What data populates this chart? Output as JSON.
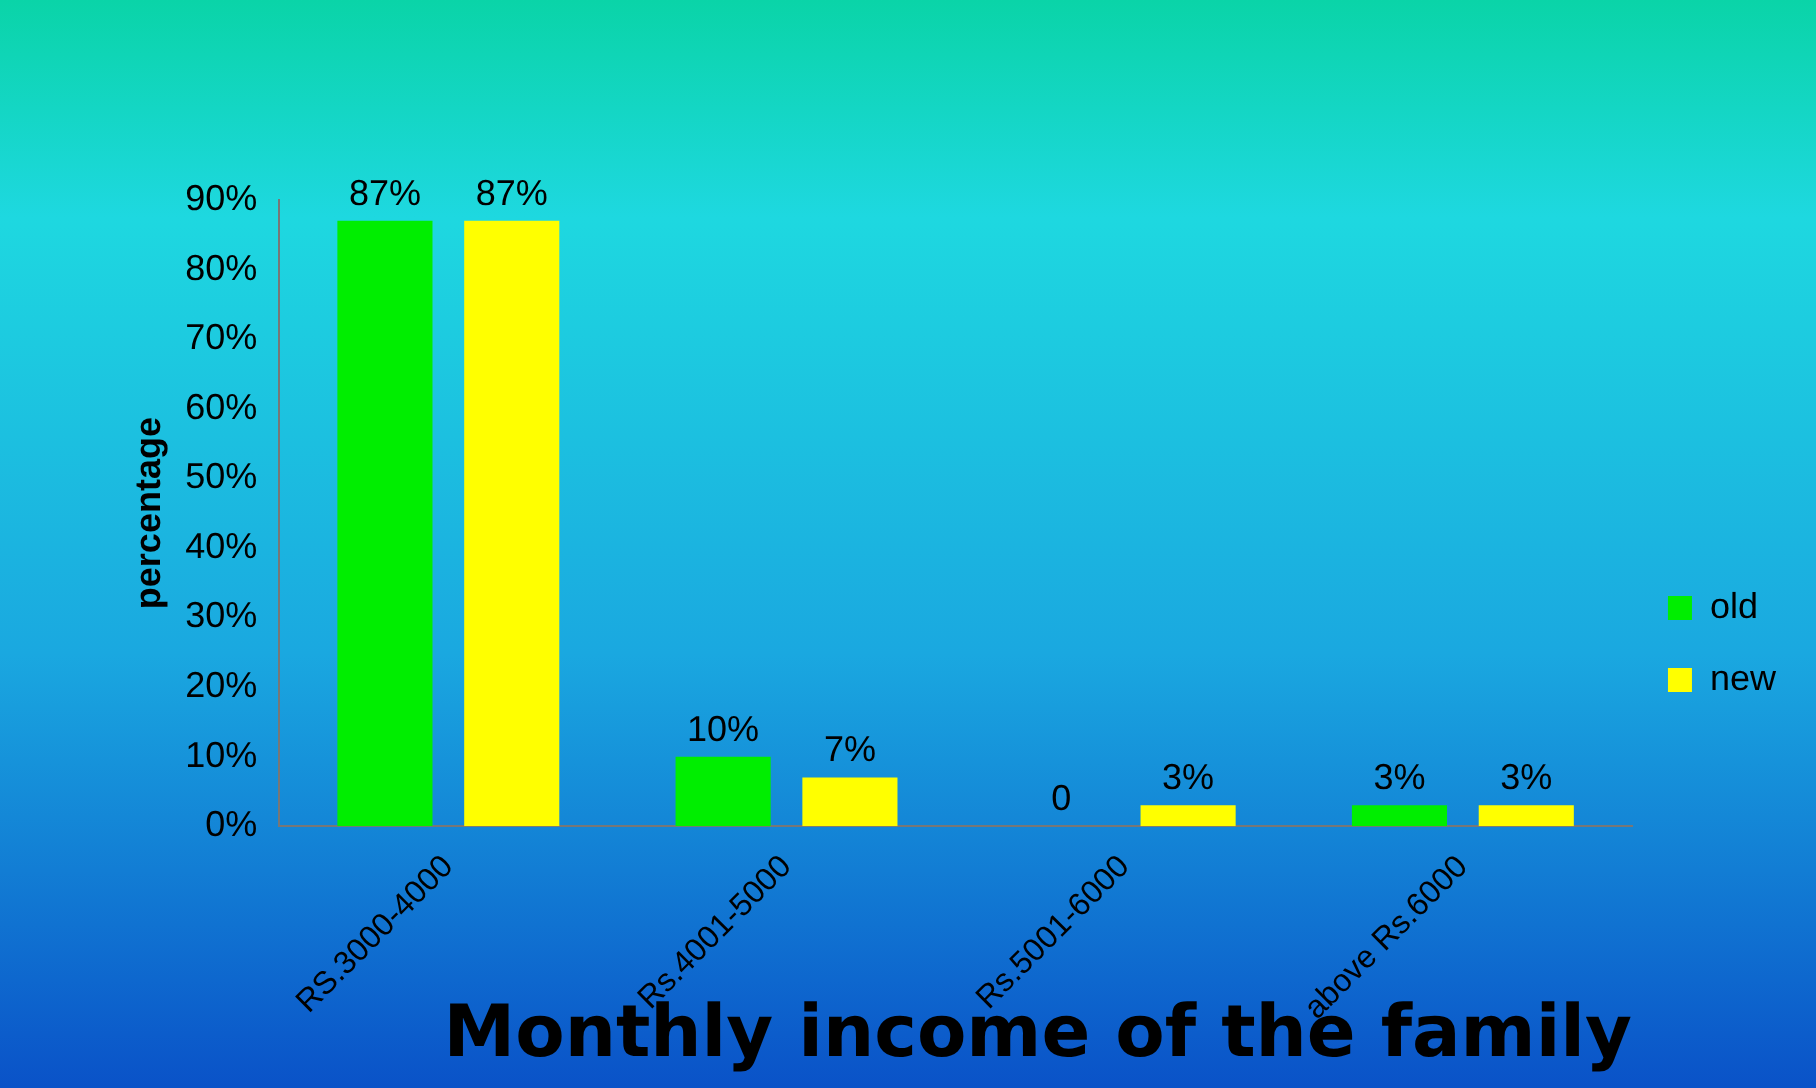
{
  "chart_data": {
    "type": "bar",
    "xlabel": "Monthly income of the family",
    "ylabel": "percentage",
    "categories": [
      "RS.3000-4000",
      "Rs.4001-5000",
      "Rs.5001-6000",
      "above Rs.6000"
    ],
    "series": [
      {
        "name": "old",
        "color": "#00ee00",
        "values": [
          87,
          10,
          0,
          3
        ],
        "value_labels": [
          "87%",
          "10%",
          "0",
          "3%"
        ]
      },
      {
        "name": "new",
        "color": "#ffff00",
        "values": [
          87,
          7,
          3,
          3
        ],
        "value_labels": [
          "87%",
          "7%",
          "3%",
          "3%"
        ]
      }
    ],
    "ylim": [
      0,
      90
    ],
    "yticks": [
      {
        "value": 0,
        "label": "0%"
      },
      {
        "value": 10,
        "label": "10%"
      },
      {
        "value": 20,
        "label": "20%"
      },
      {
        "value": 30,
        "label": "30%"
      },
      {
        "value": 40,
        "label": "40%"
      },
      {
        "value": 50,
        "label": "50%"
      },
      {
        "value": 60,
        "label": "60%"
      },
      {
        "value": 70,
        "label": "70%"
      },
      {
        "value": 80,
        "label": "80%"
      },
      {
        "value": 90,
        "label": "90%"
      }
    ],
    "legend": "right"
  }
}
